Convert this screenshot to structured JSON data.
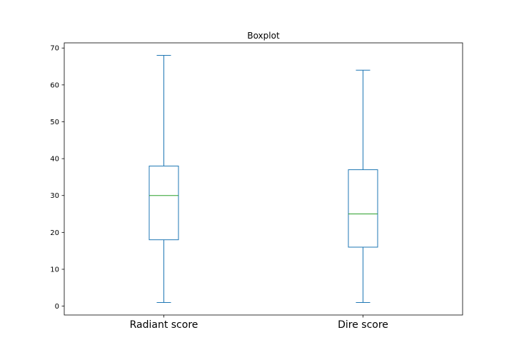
{
  "chart_data": {
    "type": "boxplot",
    "title": "Boxplot",
    "xlabel": "",
    "ylabel": "",
    "ylim": [
      -2.4,
      71.4
    ],
    "yticks": [
      0,
      10,
      20,
      30,
      40,
      50,
      60,
      70
    ],
    "grid": false,
    "categories": [
      "Radiant score",
      "Dire score"
    ],
    "boxes": [
      {
        "category": "Radiant score",
        "min": 1,
        "q1": 18,
        "median": 30,
        "q3": 38,
        "max": 68
      },
      {
        "category": "Dire score",
        "min": 1,
        "q1": 16,
        "median": 25,
        "q3": 37,
        "max": 64
      }
    ],
    "colors": {
      "box": "#1f77b4",
      "median": "#2ca02c",
      "axis": "#000000"
    }
  }
}
